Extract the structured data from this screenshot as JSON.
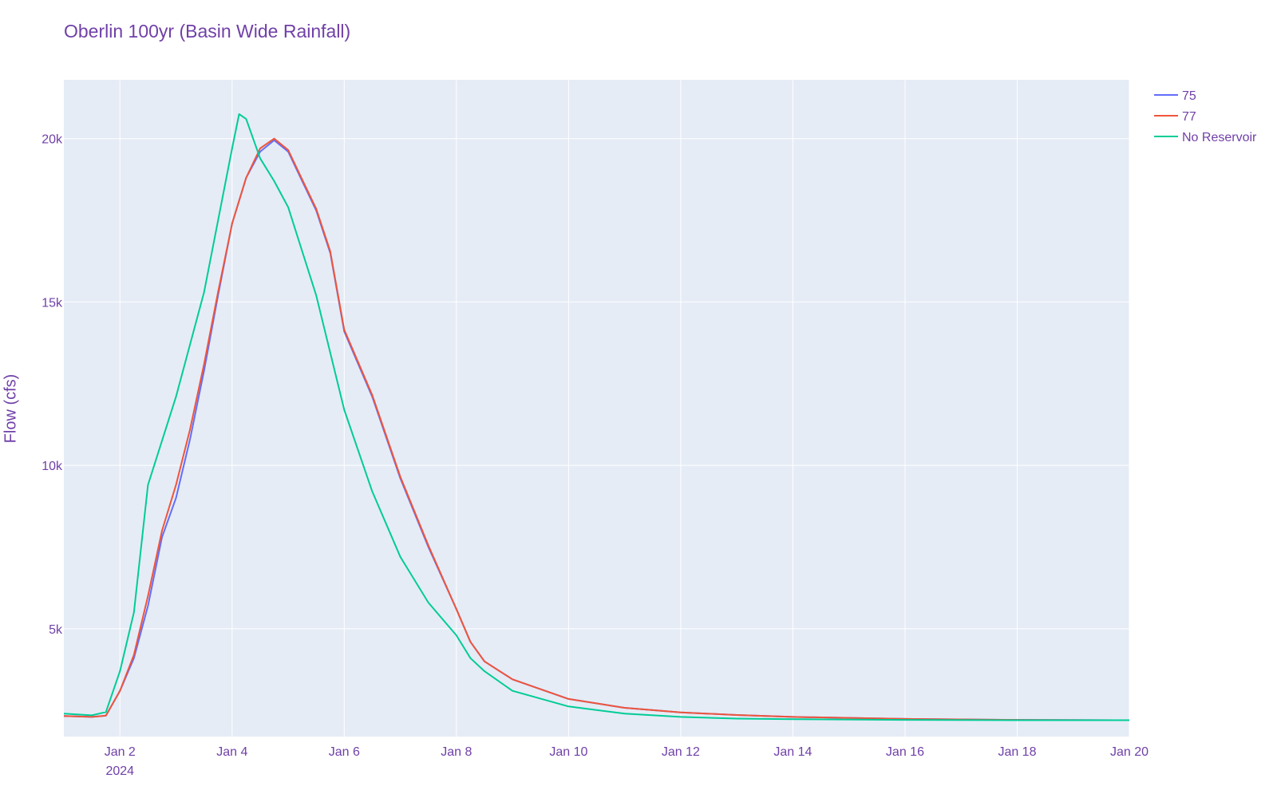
{
  "chart_data": {
    "type": "line",
    "title": "Oberlin 100yr (Basin Wide Rainfall)",
    "xlabel": "",
    "ylabel": "Flow (cfs)",
    "xlim": [
      "2024-01-01",
      "2024-01-20"
    ],
    "ylim": [
      1700,
      21800
    ],
    "grid": true,
    "legend_position": "top-right",
    "x_ticks": [
      {
        "date": "2024-01-02",
        "label": "Jan 2",
        "sublabel": "2024"
      },
      {
        "date": "2024-01-04",
        "label": "Jan 4"
      },
      {
        "date": "2024-01-06",
        "label": "Jan 6"
      },
      {
        "date": "2024-01-08",
        "label": "Jan 8"
      },
      {
        "date": "2024-01-10",
        "label": "Jan 10"
      },
      {
        "date": "2024-01-12",
        "label": "Jan 12"
      },
      {
        "date": "2024-01-14",
        "label": "Jan 14"
      },
      {
        "date": "2024-01-16",
        "label": "Jan 16"
      },
      {
        "date": "2024-01-18",
        "label": "Jan 18"
      },
      {
        "date": "2024-01-20",
        "label": "Jan 20"
      }
    ],
    "y_ticks": [
      {
        "value": 5000,
        "label": "5k"
      },
      {
        "value": 10000,
        "label": "10k"
      },
      {
        "value": 15000,
        "label": "15k"
      },
      {
        "value": 20000,
        "label": "20k"
      }
    ],
    "series": [
      {
        "name": "75",
        "color": "#636efa",
        "points": [
          [
            "2024-01-01 00:00",
            2330
          ],
          [
            "2024-01-01 12:00",
            2300
          ],
          [
            "2024-01-01 18:00",
            2340
          ],
          [
            "2024-01-02 00:00",
            3100
          ],
          [
            "2024-01-02 06:00",
            4100
          ],
          [
            "2024-01-02 12:00",
            5700
          ],
          [
            "2024-01-02 18:00",
            7800
          ],
          [
            "2024-01-03 00:00",
            9000
          ],
          [
            "2024-01-03 06:00",
            10800
          ],
          [
            "2024-01-03 12:00",
            12900
          ],
          [
            "2024-01-03 18:00",
            15200
          ],
          [
            "2024-01-04 00:00",
            17400
          ],
          [
            "2024-01-04 06:00",
            18800
          ],
          [
            "2024-01-04 12:00",
            19600
          ],
          [
            "2024-01-04 18:00",
            19950
          ],
          [
            "2024-01-05 00:00",
            19600
          ],
          [
            "2024-01-05 06:00",
            18700
          ],
          [
            "2024-01-05 12:00",
            17800
          ],
          [
            "2024-01-05 18:00",
            16500
          ],
          [
            "2024-01-06 00:00",
            14100
          ],
          [
            "2024-01-06 12:00",
            12100
          ],
          [
            "2024-01-07 00:00",
            9600
          ],
          [
            "2024-01-07 12:00",
            7500
          ],
          [
            "2024-01-08 00:00",
            5600
          ],
          [
            "2024-01-08 06:00",
            4600
          ],
          [
            "2024-01-08 12:00",
            4000
          ],
          [
            "2024-01-09 00:00",
            3450
          ],
          [
            "2024-01-10 00:00",
            2850
          ],
          [
            "2024-01-11 00:00",
            2580
          ],
          [
            "2024-01-12 00:00",
            2440
          ],
          [
            "2024-01-13 00:00",
            2360
          ],
          [
            "2024-01-14 00:00",
            2300
          ],
          [
            "2024-01-16 00:00",
            2240
          ],
          [
            "2024-01-18 00:00",
            2210
          ],
          [
            "2024-01-20 00:00",
            2200
          ]
        ]
      },
      {
        "name": "77",
        "color": "#ef553b",
        "points": [
          [
            "2024-01-01 00:00",
            2330
          ],
          [
            "2024-01-01 12:00",
            2300
          ],
          [
            "2024-01-01 18:00",
            2340
          ],
          [
            "2024-01-02 00:00",
            3100
          ],
          [
            "2024-01-02 06:00",
            4200
          ],
          [
            "2024-01-02 12:00",
            6000
          ],
          [
            "2024-01-02 18:00",
            8000
          ],
          [
            "2024-01-03 00:00",
            9400
          ],
          [
            "2024-01-03 06:00",
            11100
          ],
          [
            "2024-01-03 12:00",
            13100
          ],
          [
            "2024-01-03 18:00",
            15300
          ],
          [
            "2024-01-04 00:00",
            17400
          ],
          [
            "2024-01-04 06:00",
            18800
          ],
          [
            "2024-01-04 12:00",
            19700
          ],
          [
            "2024-01-04 18:00",
            20000
          ],
          [
            "2024-01-05 00:00",
            19650
          ],
          [
            "2024-01-05 06:00",
            18750
          ],
          [
            "2024-01-05 12:00",
            17850
          ],
          [
            "2024-01-05 18:00",
            16550
          ],
          [
            "2024-01-06 00:00",
            14150
          ],
          [
            "2024-01-06 12:00",
            12150
          ],
          [
            "2024-01-07 00:00",
            9650
          ],
          [
            "2024-01-07 12:00",
            7550
          ],
          [
            "2024-01-08 00:00",
            5600
          ],
          [
            "2024-01-08 06:00",
            4600
          ],
          [
            "2024-01-08 12:00",
            4000
          ],
          [
            "2024-01-09 00:00",
            3450
          ],
          [
            "2024-01-10 00:00",
            2850
          ],
          [
            "2024-01-11 00:00",
            2580
          ],
          [
            "2024-01-12 00:00",
            2440
          ],
          [
            "2024-01-13 00:00",
            2360
          ],
          [
            "2024-01-14 00:00",
            2300
          ],
          [
            "2024-01-16 00:00",
            2240
          ],
          [
            "2024-01-18 00:00",
            2210
          ],
          [
            "2024-01-20 00:00",
            2200
          ]
        ]
      },
      {
        "name": "No Reservoir",
        "color": "#00cc96",
        "points": [
          [
            "2024-01-01 00:00",
            2400
          ],
          [
            "2024-01-01 12:00",
            2350
          ],
          [
            "2024-01-01 18:00",
            2450
          ],
          [
            "2024-01-02 00:00",
            3700
          ],
          [
            "2024-01-02 06:00",
            5500
          ],
          [
            "2024-01-02 12:00",
            9400
          ],
          [
            "2024-01-03 00:00",
            12100
          ],
          [
            "2024-01-03 12:00",
            15300
          ],
          [
            "2024-01-04 00:00",
            19700
          ],
          [
            "2024-01-04 03:00",
            20750
          ],
          [
            "2024-01-04 06:00",
            20600
          ],
          [
            "2024-01-04 12:00",
            19400
          ],
          [
            "2024-01-04 18:00",
            18700
          ],
          [
            "2024-01-05 00:00",
            17900
          ],
          [
            "2024-01-05 12:00",
            15200
          ],
          [
            "2024-01-06 00:00",
            11700
          ],
          [
            "2024-01-06 12:00",
            9200
          ],
          [
            "2024-01-07 00:00",
            7200
          ],
          [
            "2024-01-07 12:00",
            5800
          ],
          [
            "2024-01-08 00:00",
            4800
          ],
          [
            "2024-01-08 06:00",
            4100
          ],
          [
            "2024-01-08 12:00",
            3700
          ],
          [
            "2024-01-09 00:00",
            3100
          ],
          [
            "2024-01-10 00:00",
            2620
          ],
          [
            "2024-01-11 00:00",
            2400
          ],
          [
            "2024-01-12 00:00",
            2300
          ],
          [
            "2024-01-13 00:00",
            2250
          ],
          [
            "2024-01-14 00:00",
            2230
          ],
          [
            "2024-01-16 00:00",
            2210
          ],
          [
            "2024-01-18 00:00",
            2200
          ],
          [
            "2024-01-20 00:00",
            2200
          ]
        ]
      }
    ]
  }
}
